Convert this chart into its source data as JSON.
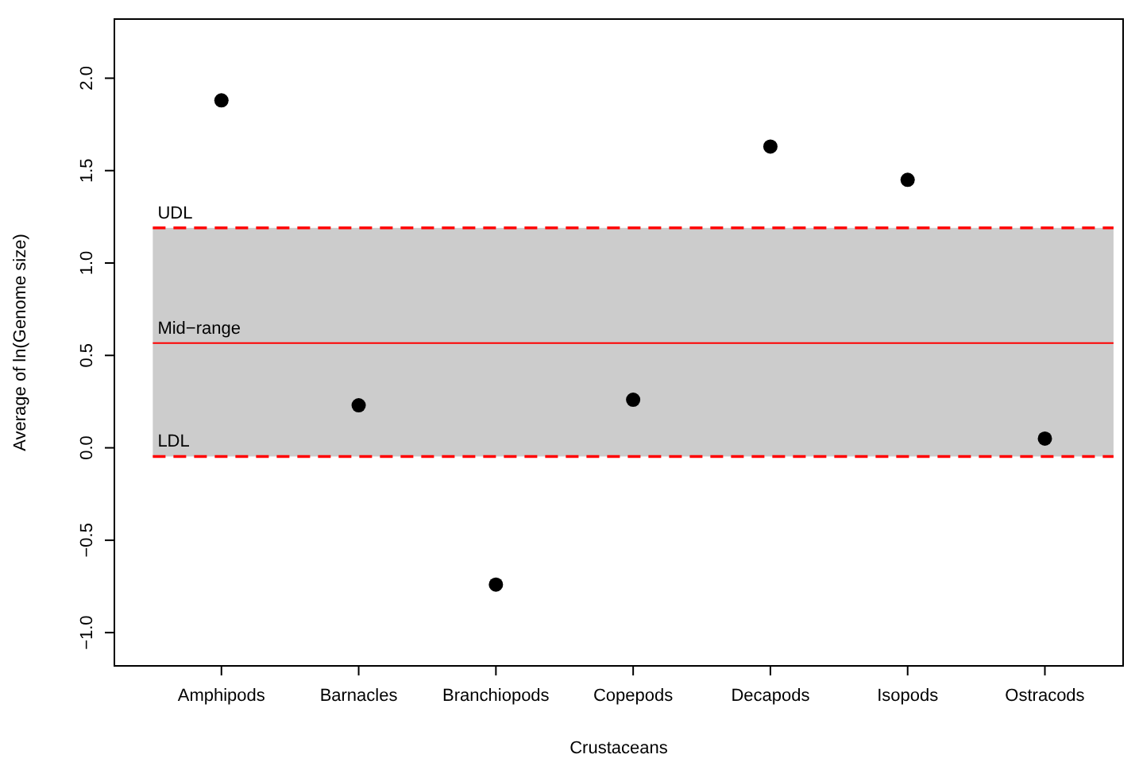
{
  "chart_data": {
    "type": "scatter",
    "xlabel": "Crustaceans",
    "ylabel": "Average of ln(Genome size)",
    "categories": [
      "Amphipods",
      "Barnacles",
      "Branchiopods",
      "Copepods",
      "Decapods",
      "Isopods",
      "Ostracods"
    ],
    "series": [
      {
        "color": "#000000",
        "values": [
          1.88,
          0.23,
          -0.74,
          0.26,
          1.63,
          1.45,
          0.05
        ]
      }
    ],
    "marker": "circle",
    "ylim": [
      -1.18,
      2.32
    ],
    "yticks": [
      {
        "value": -1,
        "label": "−1.0"
      },
      {
        "value": -0.5,
        "label": "−0.5"
      },
      {
        "value": 0,
        "label": "0.0"
      },
      {
        "value": 0.5,
        "label": "0.5"
      },
      {
        "value": 1,
        "label": "1.0"
      },
      {
        "value": 1.5,
        "label": "1.5"
      },
      {
        "value": 2,
        "label": "2.0"
      }
    ],
    "grid": false,
    "bands": [
      {
        "axis": "y",
        "from": -0.047,
        "to": 1.19,
        "color": "#cccccc"
      }
    ],
    "ref_lines": [
      {
        "axis": "y",
        "value": 1.19,
        "label": "UDL",
        "color": "#ff0000",
        "line_style": "dashed"
      },
      {
        "axis": "y",
        "value": 0.567,
        "label": "Mid−range",
        "color": "#ff0000",
        "line_style": "solid"
      },
      {
        "axis": "y",
        "value": -0.047,
        "label": "LDL",
        "color": "#ff0000",
        "line_style": "dashed"
      }
    ]
  }
}
